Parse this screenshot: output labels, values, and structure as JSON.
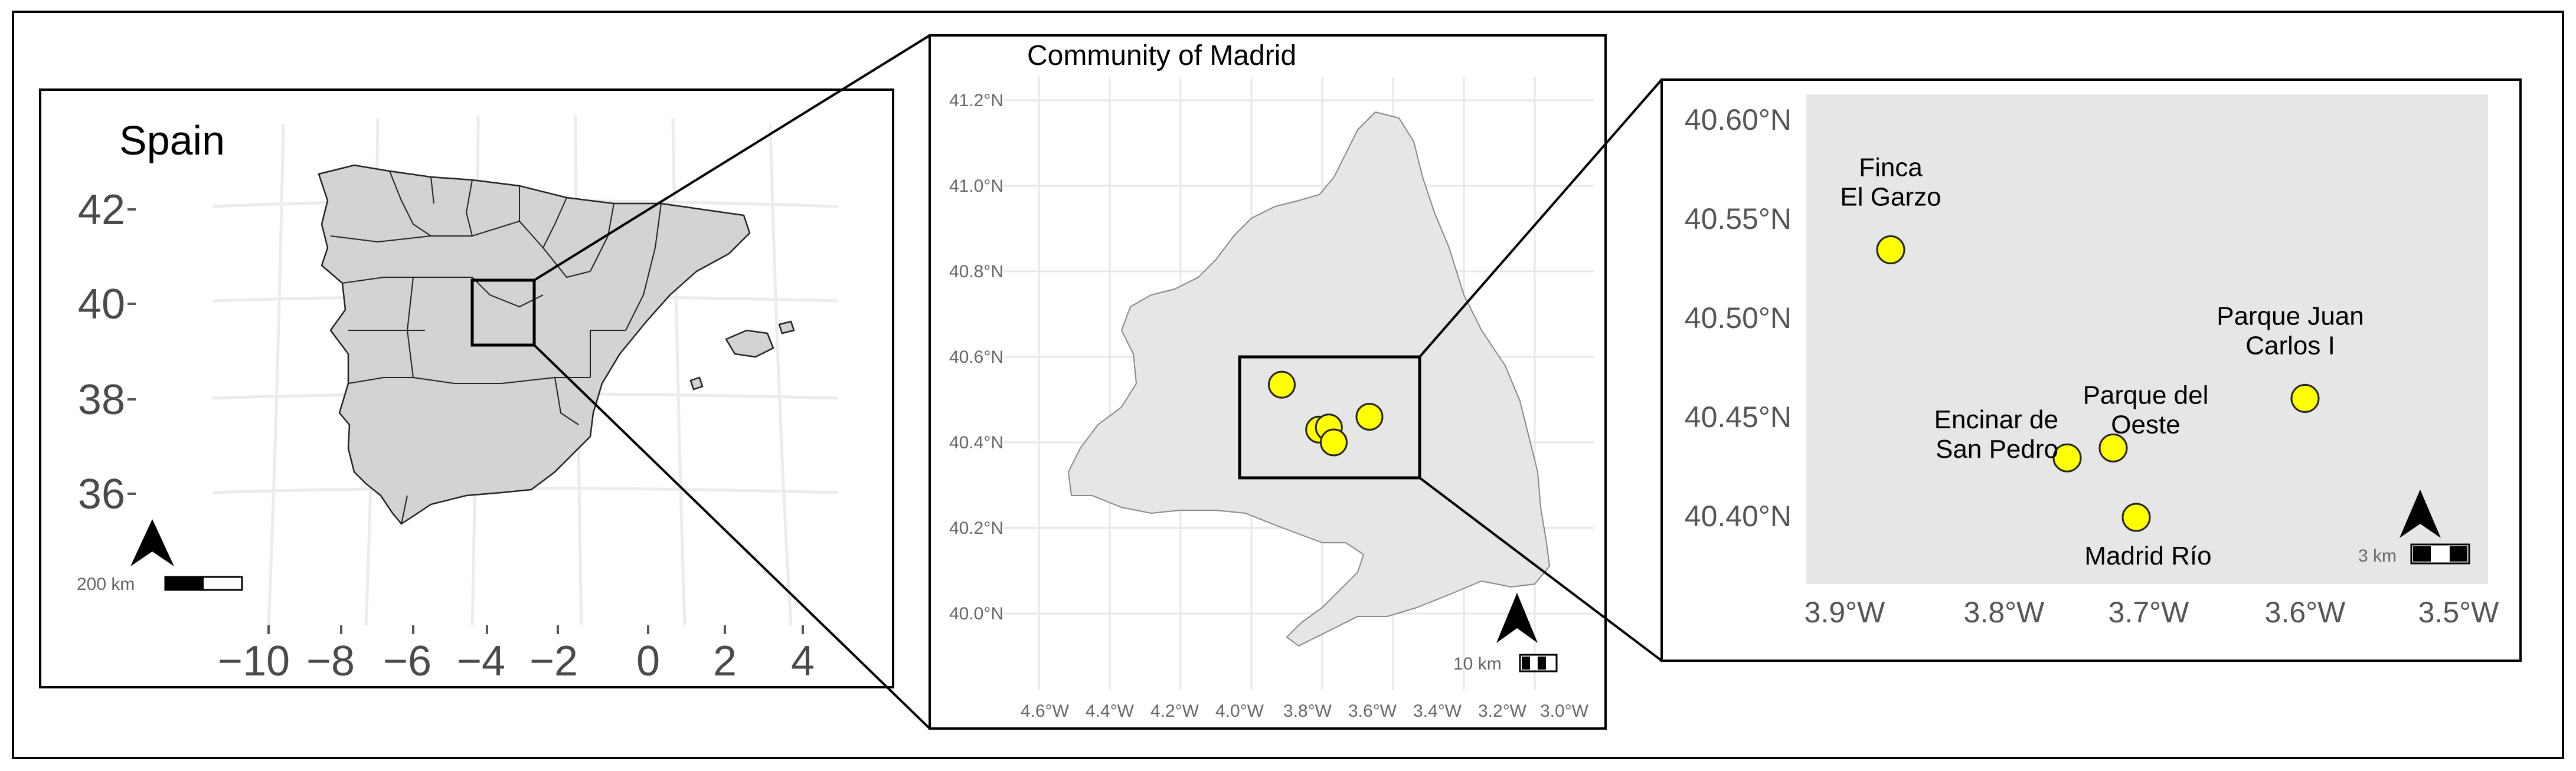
{
  "colors": {
    "land": "#d3d3d3",
    "panel_background": "#e6e6e6",
    "site_fill": "#ffff00",
    "site_stroke": "#222222",
    "grid": "#ececec"
  },
  "panel_spain": {
    "title": "Spain",
    "y_ticks": [
      "42",
      "40",
      "38",
      "36"
    ],
    "x_ticks": [
      "−10",
      "−8",
      "−6",
      "−4",
      "−2",
      "0",
      "2",
      "4"
    ],
    "scale_label": "200 km",
    "north_arrow": "north-arrow-icon"
  },
  "panel_madrid": {
    "title": "Community of Madrid",
    "y_ticks": [
      "41.2°N",
      "41.0°N",
      "40.8°N",
      "40.6°N",
      "40.4°N",
      "40.2°N",
      "40.0°N"
    ],
    "x_ticks": [
      "4.6°W",
      "4.4°W",
      "4.2°W",
      "4.0°W",
      "3.8°W",
      "3.6°W",
      "3.4°W",
      "3.2°W",
      "3.0°W"
    ],
    "scale_label": "10 km",
    "north_arrow": "north-arrow-icon",
    "sites": [
      {
        "lon": -3.87,
        "lat": 40.535
      },
      {
        "lon": -3.755,
        "lat": 40.43
      },
      {
        "lon": -3.725,
        "lat": 40.435
      },
      {
        "lon": -3.71,
        "lat": 40.4
      },
      {
        "lon": -3.6,
        "lat": 40.46
      }
    ]
  },
  "panel_zoom": {
    "y_ticks": [
      "40.60°N",
      "40.55°N",
      "40.50°N",
      "40.45°N",
      "40.40°N"
    ],
    "x_ticks": [
      "3.9°W",
      "3.8°W",
      "3.7°W",
      "3.6°W",
      "3.5°W"
    ],
    "scale_label": "3 km",
    "north_arrow": "north-arrow-icon",
    "sites": [
      {
        "name": "Finca El Garzo",
        "label_lines": [
          "Finca",
          "El Garzo"
        ],
        "lon": -3.87,
        "lat": 40.535
      },
      {
        "name": "Encinar de San Pedro",
        "label_lines": [
          "Encinar de",
          "San Pedro"
        ],
        "lon": -3.755,
        "lat": 40.43
      },
      {
        "name": "Parque del Oeste",
        "label_lines": [
          "Parque del",
          "Oeste"
        ],
        "lon": -3.725,
        "lat": 40.435
      },
      {
        "name": "Madrid Río",
        "label_lines": [
          "Madrid Río"
        ],
        "lon": -3.71,
        "lat": 40.4
      },
      {
        "name": "Parque Juan Carlos I",
        "label_lines": [
          "Parque Juan",
          "Carlos I"
        ],
        "lon": -3.6,
        "lat": 40.46
      }
    ]
  }
}
